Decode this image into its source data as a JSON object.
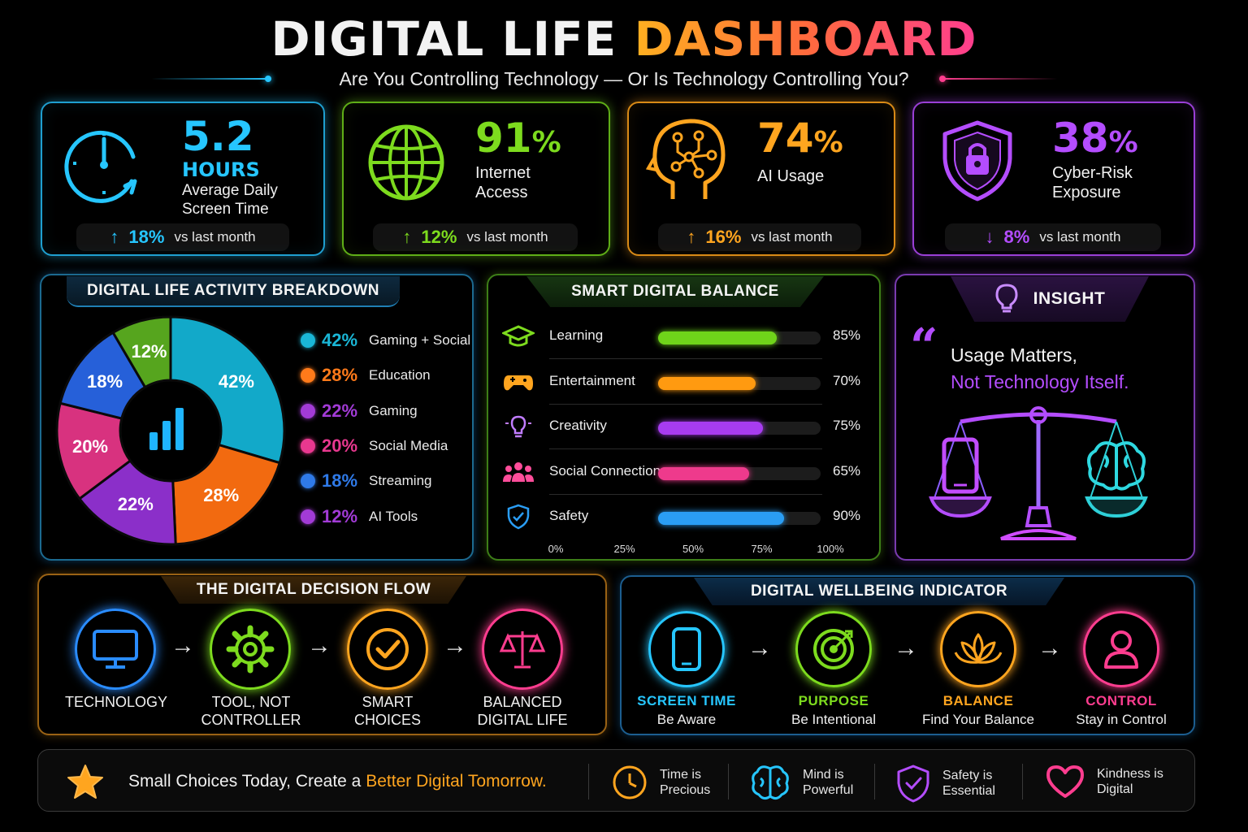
{
  "header": {
    "title_part1": "DIGITAL LIFE",
    "title_part2": "DASHBOARD",
    "subtitle": "Are You Controlling Technology — Or Is Technology Controlling You?"
  },
  "stats": [
    {
      "value": "5.2",
      "unit": "HOURS",
      "label1": "Average Daily",
      "label2": "Screen Time",
      "change": "18%",
      "direction": "up",
      "vs": "vs last month",
      "color": "#26c6ff",
      "icon": "clock-icon"
    },
    {
      "value": "91",
      "unit": "%",
      "label1": "Internet",
      "label2": "Access",
      "change": "12%",
      "direction": "up",
      "vs": "vs last month",
      "color": "#7ddb1e",
      "icon": "globe-icon"
    },
    {
      "value": "74",
      "unit": "%",
      "label1": "AI Usage",
      "label2": "",
      "change": "16%",
      "direction": "up",
      "vs": "vs last month",
      "color": "#ffa51f",
      "icon": "brain-head-icon"
    },
    {
      "value": "38",
      "unit": "%",
      "label1": "Cyber-Risk",
      "label2": "Exposure",
      "change": "8%",
      "direction": "down",
      "vs": "vs last month",
      "color": "#b44dff",
      "icon": "shield-lock-icon"
    }
  ],
  "activity": {
    "title": "DIGITAL LIFE ACTIVITY BREAKDOWN",
    "legend": [
      {
        "pct": "42%",
        "name": "Gaming + Social",
        "color": "#1ab6d6"
      },
      {
        "pct": "28%",
        "name": "Education",
        "color": "#ff7a1a"
      },
      {
        "pct": "22%",
        "name": "Gaming",
        "color": "#a23bd6"
      },
      {
        "pct": "20%",
        "name": "Social Media",
        "color": "#e8388f"
      },
      {
        "pct": "18%",
        "name": "Streaming",
        "color": "#2f7ae8"
      },
      {
        "pct": "12%",
        "name": "AI Tools",
        "color": "#a23bd6"
      }
    ]
  },
  "chart_data": {
    "type": "pie",
    "categories": [
      "42%",
      "28%",
      "22%",
      "20%",
      "18%",
      "12%"
    ],
    "values": [
      42,
      28,
      22,
      20,
      18,
      12
    ],
    "colors": [
      "#12a9c9",
      "#f26a10",
      "#8b2fc9",
      "#d8327f",
      "#2660d9",
      "#56a51e"
    ]
  },
  "balance": {
    "title": "SMART DIGITAL BALANCE",
    "rows": [
      {
        "name": "Learning",
        "value": 85,
        "label": "85%",
        "color": "#6fd41a",
        "icon": "graduation-cap-icon"
      },
      {
        "name": "Entertainment",
        "value": 70,
        "label": "70%",
        "color": "#ff9a10",
        "icon": "gamepad-icon"
      },
      {
        "name": "Creativity",
        "value": 75,
        "label": "75%",
        "color": "#a73cf0",
        "icon": "lightbulb-icon"
      },
      {
        "name": "Social Connection",
        "value": 65,
        "label": "65%",
        "color": "#ee3a8c",
        "icon": "people-icon"
      },
      {
        "name": "Safety",
        "value": 90,
        "label": "90%",
        "color": "#2a9df4",
        "icon": "shield-check-icon"
      }
    ],
    "ticks": [
      "0%",
      "25%",
      "50%",
      "75%",
      "100%"
    ]
  },
  "insight": {
    "title": "INSIGHT",
    "line1": "Usage Matters,",
    "line2": "Not Technology Itself."
  },
  "decision": {
    "title": "THE DIGITAL DECISION FLOW",
    "steps": [
      {
        "l1": "TECHNOLOGY",
        "l2": "",
        "color": "#2a8cff",
        "icon": "monitor-icon"
      },
      {
        "l1": "TOOL, NOT",
        "l2": "CONTROLLER",
        "color": "#7ddb1e",
        "icon": "gear-icon"
      },
      {
        "l1": "SMART",
        "l2": "CHOICES",
        "color": "#ffa51f",
        "icon": "check-icon"
      },
      {
        "l1": "BALANCED",
        "l2": "DIGITAL LIFE",
        "color": "#ff3d8f",
        "icon": "scale-icon"
      }
    ]
  },
  "wellbeing": {
    "title": "DIGITAL WELLBEING INDICATOR",
    "steps": [
      {
        "a": "SCREEN TIME",
        "b": "Be Aware",
        "color": "#26c6ff",
        "icon": "phone-icon"
      },
      {
        "a": "PURPOSE",
        "b": "Be Intentional",
        "color": "#7ddb1e",
        "icon": "target-icon"
      },
      {
        "a": "BALANCE",
        "b": "Find Your Balance",
        "color": "#ffa51f",
        "icon": "lotus-icon"
      },
      {
        "a": "CONTROL",
        "b": "Stay in Control",
        "color": "#ff3d8f",
        "icon": "user-icon"
      }
    ]
  },
  "footer": {
    "slogan_part1": "Small Choices Today, Create a",
    "slogan_part2": "Better Digital Tomorrow.",
    "items": [
      {
        "l1": "Time is",
        "l2": "Precious",
        "icon": "clock-icon",
        "color": "#ffa51f"
      },
      {
        "l1": "Mind is",
        "l2": "Powerful",
        "icon": "brain-icon",
        "color": "#26c6ff"
      },
      {
        "l1": "Safety is",
        "l2": "Essential",
        "icon": "shield-check-icon",
        "color": "#b44dff"
      },
      {
        "l1": "Kindness is",
        "l2": "Digital",
        "icon": "heart-icon",
        "color": "#ff3d8f"
      }
    ]
  }
}
